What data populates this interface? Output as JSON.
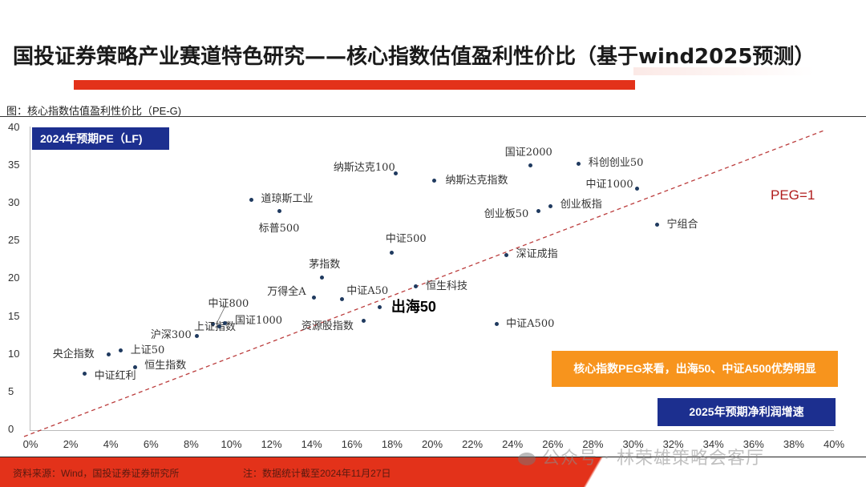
{
  "header": {
    "title": "国投证券策略产业赛道特色研究——核心指数估值盈利性价比（基于wind2025预测）",
    "subtitle": "图：核心指数估值盈利性价比（PE-G)"
  },
  "chart_data": {
    "type": "scatter",
    "title": "核心指数估值盈利性价比（PE-G)",
    "xlabel": "2025年预期净利润增速",
    "ylabel": "2024年预期PE（LF)",
    "xlim": [
      0,
      40
    ],
    "ylim": [
      0,
      40
    ],
    "x_unit": "%",
    "x_ticks": [
      "0%",
      "2%",
      "4%",
      "6%",
      "8%",
      "10%",
      "12%",
      "14%",
      "16%",
      "18%",
      "20%",
      "22%",
      "24%",
      "26%",
      "28%",
      "30%",
      "32%",
      "34%",
      "36%",
      "38%",
      "40%"
    ],
    "y_ticks": [
      "0",
      "5",
      "10",
      "15",
      "20",
      "25",
      "30",
      "35",
      "40"
    ],
    "grid": false,
    "reference_line": {
      "label": "PEG=1",
      "style": "dashed",
      "color": "#b01c1c",
      "from": [
        0,
        0
      ],
      "to": [
        40,
        40
      ]
    },
    "points": [
      {
        "name": "中证红利",
        "x": 2.7,
        "y": 7.5
      },
      {
        "name": "央企指数",
        "x": 3.9,
        "y": 10.0
      },
      {
        "name": "上证50",
        "x": 4.5,
        "y": 10.5
      },
      {
        "name": "恒生指数",
        "x": 5.2,
        "y": 8.3
      },
      {
        "name": "沪深300",
        "x": 8.3,
        "y": 12.5
      },
      {
        "name": "上证指数",
        "x": 9.1,
        "y": 14.0
      },
      {
        "name": "中证800",
        "x": 9.4,
        "y": 13.7
      },
      {
        "name": "国证1000",
        "x": 9.7,
        "y": 14.2
      },
      {
        "name": "道琼斯工业",
        "x": 11.0,
        "y": 30.5
      },
      {
        "name": "标普500",
        "x": 12.4,
        "y": 29.0
      },
      {
        "name": "万得全A",
        "x": 14.1,
        "y": 17.6
      },
      {
        "name": "茅指数",
        "x": 14.5,
        "y": 20.2
      },
      {
        "name": "中证A50",
        "x": 15.5,
        "y": 17.3
      },
      {
        "name": "资源股指数",
        "x": 16.6,
        "y": 14.5
      },
      {
        "name": "出海50",
        "x": 17.4,
        "y": 16.3
      },
      {
        "name": "中证500",
        "x": 18.0,
        "y": 23.5
      },
      {
        "name": "纳斯达克100",
        "x": 18.2,
        "y": 34.0
      },
      {
        "name": "恒生科技",
        "x": 19.2,
        "y": 19.0
      },
      {
        "name": "纳斯达克指数",
        "x": 20.1,
        "y": 33.0
      },
      {
        "name": "中证A500",
        "x": 23.2,
        "y": 14.0
      },
      {
        "name": "深证成指",
        "x": 23.7,
        "y": 23.2
      },
      {
        "name": "国证2000",
        "x": 24.9,
        "y": 35.0
      },
      {
        "name": "创业板50",
        "x": 25.3,
        "y": 29.0
      },
      {
        "name": "创业板指",
        "x": 25.9,
        "y": 29.6
      },
      {
        "name": "科创创业50",
        "x": 27.3,
        "y": 35.3
      },
      {
        "name": "中证1000",
        "x": 30.2,
        "y": 32.0
      },
      {
        "name": "宁组合",
        "x": 31.2,
        "y": 27.2
      }
    ]
  },
  "badges": {
    "y_axis_title": "2024年预期PE（LF)",
    "x_axis_title": "2025年预期净利润增速",
    "callout": "核心指数PEG来看，出海50、中证A500优势明显",
    "peg_label": "PEG=1"
  },
  "footer": {
    "source": "资料来源：Wind，国投证券证券研究所",
    "note": "注：数据统计截至2024年11月27日"
  },
  "watermark": "公众号 · 林荣雄策略会客厅",
  "colors": {
    "accent_red": "#e3321a",
    "navy": "#1c2f8f",
    "orange": "#f7941d",
    "point": "#1f3a5f",
    "peg_line": "#b01c1c"
  }
}
